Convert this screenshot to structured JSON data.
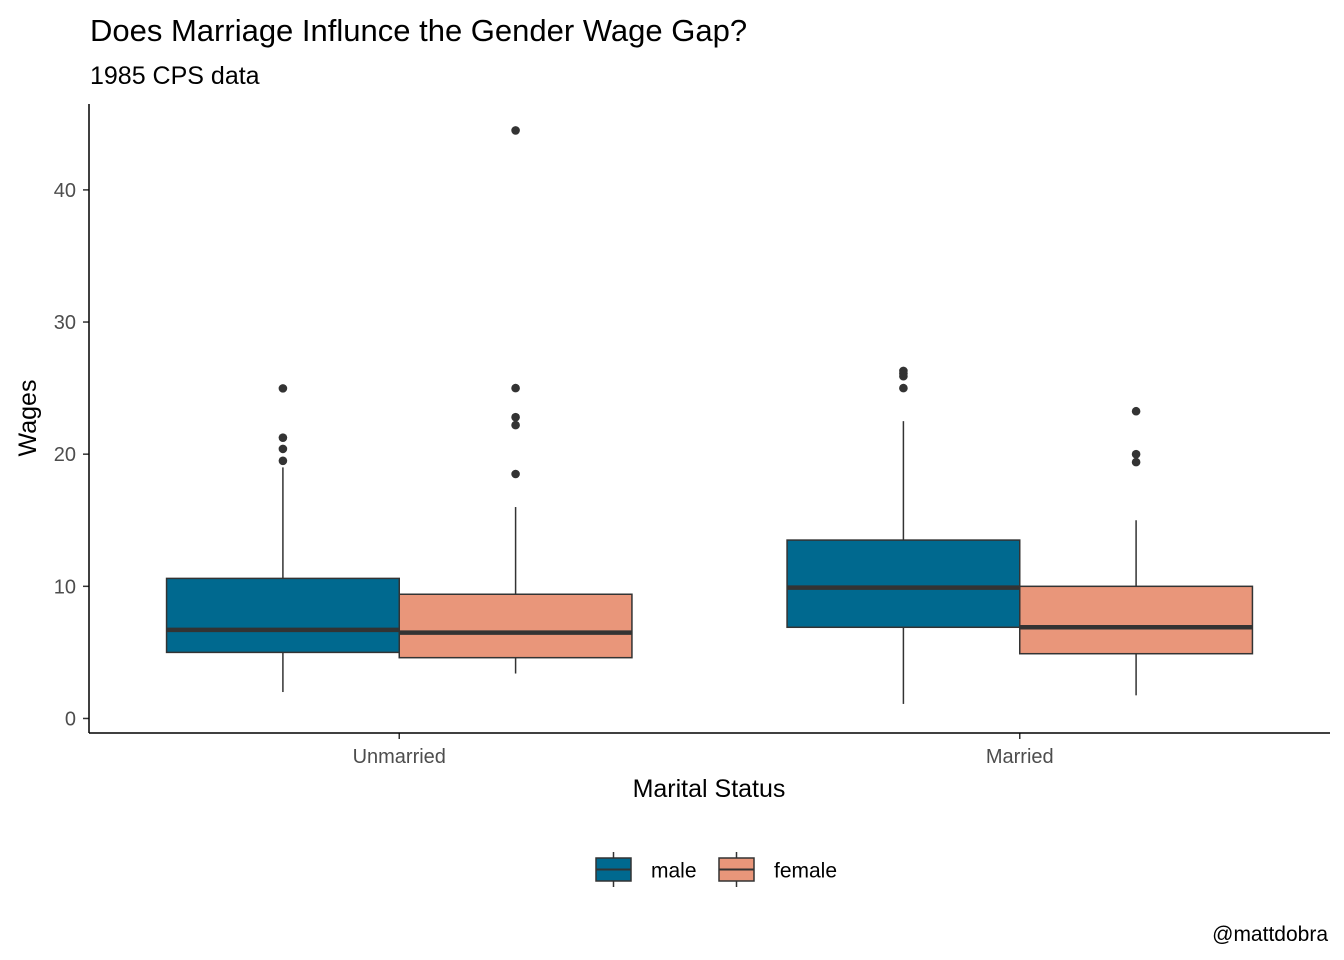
{
  "chart_data": {
    "type": "boxplot",
    "title": "Does Marriage Influnce the Gender Wage Gap?",
    "subtitle": "1985 CPS data",
    "xlabel": "Marital Status",
    "ylabel": "Wages",
    "caption": "@mattdobra",
    "categories": [
      "Unmarried",
      "Married"
    ],
    "ylim": [
      -1.1,
      46.5
    ],
    "yticks": [
      0,
      10,
      20,
      30,
      40
    ],
    "legend": {
      "position": "bottom",
      "entries": [
        "male",
        "female"
      ]
    },
    "colors": {
      "male": "#00698f",
      "female": "#e9967a",
      "line": "#333333"
    },
    "series": [
      {
        "name": "male",
        "boxes": [
          {
            "category": "Unmarried",
            "lower_whisker": 2.0,
            "q1": 5.0,
            "median": 6.7,
            "q3": 10.6,
            "upper_whisker": 19.0,
            "outliers": [
              19.5,
              20.4,
              21.25,
              24.98
            ]
          },
          {
            "category": "Married",
            "lower_whisker": 1.1,
            "q1": 6.9,
            "median": 9.9,
            "q3": 13.5,
            "upper_whisker": 22.5,
            "outliers": [
              25.0,
              25.9,
              26.1,
              26.3
            ]
          }
        ]
      },
      {
        "name": "female",
        "boxes": [
          {
            "category": "Unmarried",
            "lower_whisker": 3.4,
            "q1": 4.6,
            "median": 6.5,
            "q3": 9.4,
            "upper_whisker": 16.0,
            "outliers": [
              18.5,
              22.2,
              22.8,
              25.0,
              44.5
            ]
          },
          {
            "category": "Married",
            "lower_whisker": 1.75,
            "q1": 4.9,
            "median": 6.9,
            "q3": 10.0,
            "upper_whisker": 15.0,
            "outliers": [
              19.4,
              20.0,
              23.25
            ]
          }
        ]
      }
    ]
  }
}
